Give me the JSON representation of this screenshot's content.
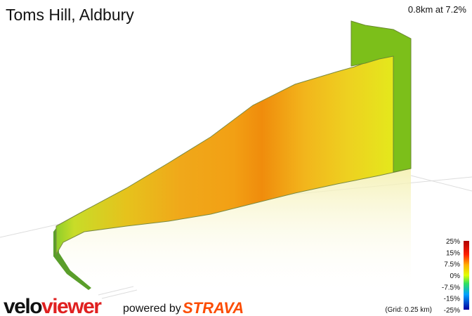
{
  "header": {
    "title": "Toms Hill, Aldbury",
    "summary": "0.8km at 7.2%"
  },
  "legend": {
    "labels": [
      "25%",
      "15%",
      "7.5%",
      "0%",
      "-7.5%",
      "-15%",
      "-25%"
    ],
    "grid_note": "(Grid: 0.25 km)"
  },
  "footer": {
    "logo_parts": [
      "velo",
      "viewer"
    ],
    "powered_by": "powered by",
    "strava": "STRAVA"
  }
}
